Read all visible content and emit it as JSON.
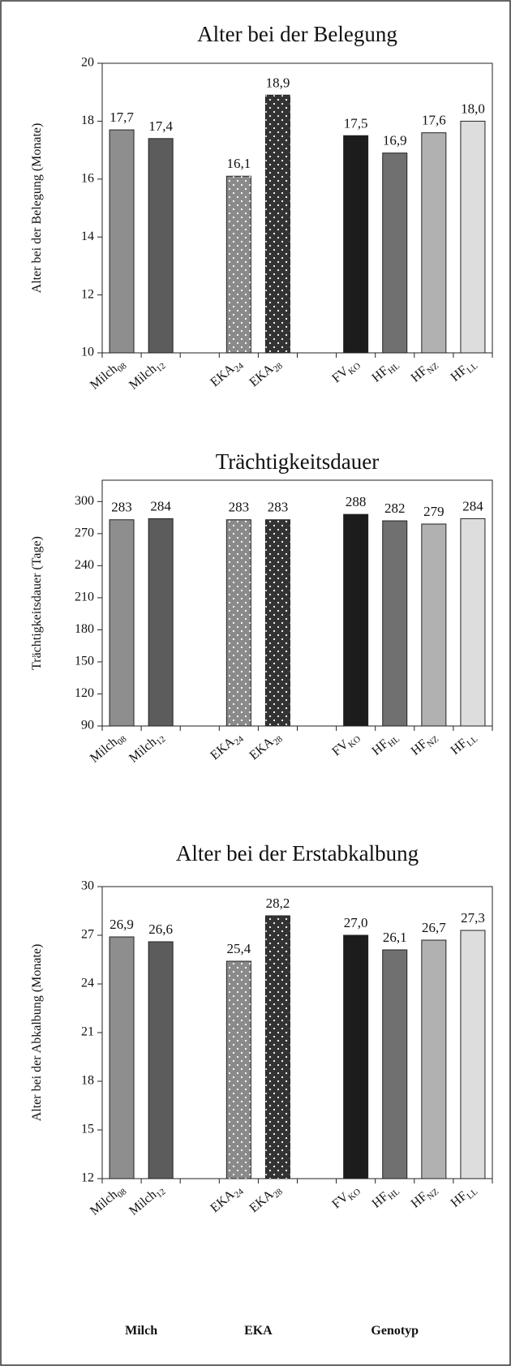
{
  "chart_data": [
    {
      "type": "bar",
      "title": "Alter bei der Belegung",
      "y_label": "Alter bei der Belegung (Monate)",
      "categories": [
        {
          "text": "Milch",
          "sub": "08"
        },
        {
          "text": "Milch",
          "sub": "12"
        },
        null,
        {
          "text": "EKA",
          "sub": "24"
        },
        {
          "text": "EKA",
          "sub": "28"
        },
        null,
        {
          "text": "FV",
          "sub": "KO"
        },
        {
          "text": "HF",
          "sub": "HL"
        },
        {
          "text": "HF",
          "sub": "NZ"
        },
        {
          "text": "HF",
          "sub": "LL"
        }
      ],
      "values": [
        17.7,
        17.4,
        null,
        16.1,
        18.9,
        null,
        17.5,
        16.9,
        17.6,
        18.0
      ],
      "value_labels": [
        "17,7",
        "17,4",
        null,
        "16,1",
        "18,9",
        null,
        "17,5",
        "16,9",
        "17,6",
        "18,0"
      ],
      "colors": [
        "#8e8e8e",
        "#5c5c5c",
        null,
        "#8a8a8a",
        "#333333",
        null,
        "#1c1c1c",
        "#707070",
        "#b1b1b1",
        "#dddddd"
      ],
      "dotted": [
        false,
        false,
        null,
        true,
        true,
        null,
        false,
        false,
        false,
        false
      ],
      "ylim": [
        10,
        20
      ],
      "yticks": [
        10,
        12,
        14,
        16,
        18,
        20
      ]
    },
    {
      "type": "bar",
      "title": "Trächtigkeitsdauer",
      "y_label": "Trächtigkeitsdauer (Tage)",
      "categories": [
        {
          "text": "Milch",
          "sub": "08"
        },
        {
          "text": "Milch",
          "sub": "12"
        },
        null,
        {
          "text": "EKA",
          "sub": "24"
        },
        {
          "text": "EKA",
          "sub": "28"
        },
        null,
        {
          "text": "FV",
          "sub": "KO"
        },
        {
          "text": "HF",
          "sub": "HL"
        },
        {
          "text": "HF",
          "sub": "NZ"
        },
        {
          "text": "HF",
          "sub": "LL"
        }
      ],
      "values": [
        283,
        284,
        null,
        283,
        283,
        null,
        288,
        282,
        279,
        284
      ],
      "colors": [
        "#8e8e8e",
        "#5c5c5c",
        null,
        "#8a8a8a",
        "#333333",
        null,
        "#1c1c1c",
        "#707070",
        "#b1b1b1",
        "#dddddd"
      ],
      "dotted": [
        false,
        false,
        null,
        true,
        true,
        null,
        false,
        false,
        false,
        false
      ],
      "ylim": [
        90,
        320
      ],
      "yticks": [
        90,
        120,
        150,
        180,
        210,
        240,
        270,
        300
      ]
    },
    {
      "type": "bar",
      "title": "Alter bei der Erstabkalbung",
      "y_label": "Alter bei der Abkalbung (Monate)",
      "categories": [
        {
          "text": "Milch",
          "sub": "08"
        },
        {
          "text": "Milch",
          "sub": "12"
        },
        null,
        {
          "text": "EKA",
          "sub": "24"
        },
        {
          "text": "EKA",
          "sub": "28"
        },
        null,
        {
          "text": "FV",
          "sub": "KO"
        },
        {
          "text": "HF",
          "sub": "HL"
        },
        {
          "text": "HF",
          "sub": "NZ"
        },
        {
          "text": "HF",
          "sub": "LL"
        }
      ],
      "values": [
        26.9,
        26.6,
        null,
        25.4,
        28.2,
        null,
        27.0,
        26.1,
        26.7,
        27.3
      ],
      "value_labels": [
        "26,9",
        "26,6",
        null,
        "25,4",
        "28,2",
        null,
        "27,0",
        "26,1",
        "26,7",
        "27,3"
      ],
      "colors": [
        "#8e8e8e",
        "#5c5c5c",
        null,
        "#8a8a8a",
        "#333333",
        null,
        "#1c1c1c",
        "#707070",
        "#b1b1b1",
        "#dddddd"
      ],
      "dotted": [
        false,
        false,
        null,
        true,
        true,
        null,
        false,
        false,
        false,
        false
      ],
      "ylim": [
        12,
        30
      ],
      "yticks": [
        12,
        15,
        18,
        21,
        24,
        27,
        30
      ]
    }
  ],
  "group_labels": [
    "Milch",
    "EKA",
    "Genotyp"
  ]
}
